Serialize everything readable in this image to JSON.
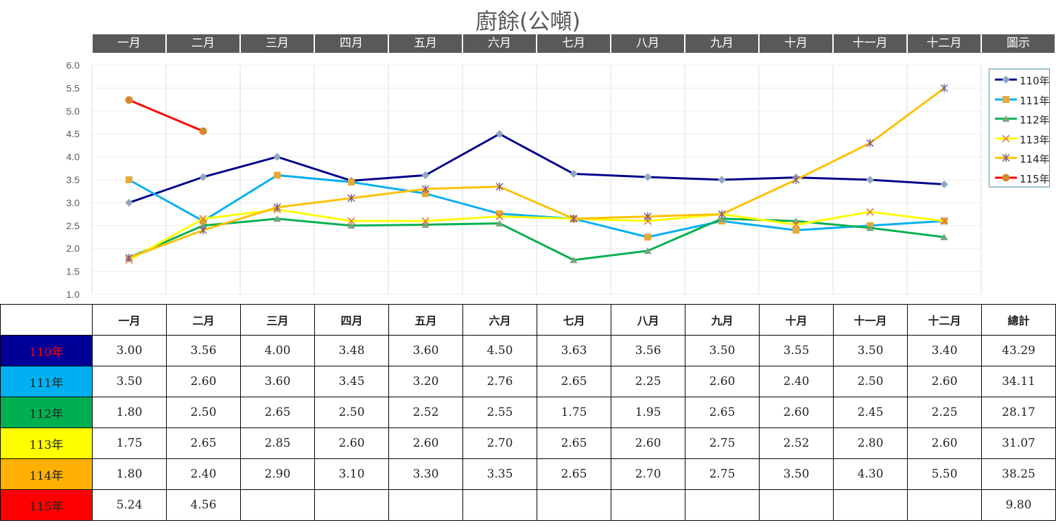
{
  "title": "廚餘(公噸)",
  "months": [
    "一月",
    "二月",
    "三月",
    "四月",
    "五月",
    "六月",
    "七月",
    "八月",
    "九月",
    "十月",
    "十一月",
    "十二月"
  ],
  "header_extra": "圖示",
  "table_header": {
    "total": "總計"
  },
  "chart_data": {
    "type": "line",
    "title": "廚餘(公噸)",
    "categories": [
      "一月",
      "二月",
      "三月",
      "四月",
      "五月",
      "六月",
      "七月",
      "八月",
      "九月",
      "十月",
      "十一月",
      "十二月"
    ],
    "ylim": [
      1.0,
      6.0
    ],
    "yticks": [
      "1.0",
      "1.5",
      "2.0",
      "2.5",
      "3.0",
      "3.5",
      "4.0",
      "4.5",
      "5.0",
      "5.5",
      "6.0"
    ],
    "grid": true,
    "legend_position": "right",
    "series": [
      {
        "name": "110年",
        "color": "#00008b",
        "marker": "diamond",
        "values": [
          3.0,
          3.56,
          4.0,
          3.48,
          3.6,
          4.5,
          3.63,
          3.56,
          3.5,
          3.55,
          3.5,
          3.4
        ]
      },
      {
        "name": "111年",
        "color": "#00b0f0",
        "marker": "square",
        "values": [
          3.5,
          2.6,
          3.6,
          3.45,
          3.2,
          2.76,
          2.65,
          2.25,
          2.6,
          2.4,
          2.5,
          2.6
        ]
      },
      {
        "name": "112年",
        "color": "#00b050",
        "marker": "triangle",
        "values": [
          1.8,
          2.5,
          2.65,
          2.5,
          2.52,
          2.55,
          1.75,
          1.95,
          2.65,
          2.6,
          2.45,
          2.25
        ]
      },
      {
        "name": "113年",
        "color": "#ffff00",
        "marker": "x",
        "values": [
          1.75,
          2.65,
          2.85,
          2.6,
          2.6,
          2.7,
          2.65,
          2.6,
          2.75,
          2.52,
          2.8,
          2.6
        ]
      },
      {
        "name": "114年",
        "color": "#ffc000",
        "marker": "star",
        "values": [
          1.8,
          2.4,
          2.9,
          3.1,
          3.3,
          3.35,
          2.65,
          2.7,
          2.75,
          3.5,
          4.3,
          5.5
        ]
      },
      {
        "name": "115年",
        "color": "#ff0000",
        "marker": "circle",
        "values": [
          5.24,
          4.56,
          null,
          null,
          null,
          null,
          null,
          null,
          null,
          null,
          null,
          null
        ]
      }
    ]
  },
  "table": {
    "rows": [
      {
        "label": "110年",
        "label_color": "#ff0000",
        "bg": "#000099",
        "cells": [
          "3.00",
          "3.56",
          "4.00",
          "3.48",
          "3.60",
          "4.50",
          "3.63",
          "3.56",
          "3.50",
          "3.55",
          "3.50",
          "3.40"
        ],
        "total": "43.29"
      },
      {
        "label": "111年",
        "label_color": "#222222",
        "bg": "#00b0f0",
        "cells": [
          "3.50",
          "2.60",
          "3.60",
          "3.45",
          "3.20",
          "2.76",
          "2.65",
          "2.25",
          "2.60",
          "2.40",
          "2.50",
          "2.60"
        ],
        "total": "34.11"
      },
      {
        "label": "112年",
        "label_color": "#222222",
        "bg": "#00b050",
        "cells": [
          "1.80",
          "2.50",
          "2.65",
          "2.50",
          "2.52",
          "2.55",
          "1.75",
          "1.95",
          "2.65",
          "2.60",
          "2.45",
          "2.25"
        ],
        "total": "28.17"
      },
      {
        "label": "113年",
        "label_color": "#222222",
        "bg": "#ffff00",
        "cells": [
          "1.75",
          "2.65",
          "2.85",
          "2.60",
          "2.60",
          "2.70",
          "2.65",
          "2.60",
          "2.75",
          "2.52",
          "2.80",
          "2.60"
        ],
        "total": "31.07"
      },
      {
        "label": "114年",
        "label_color": "#222222",
        "bg": "#ffb000",
        "cells": [
          "1.80",
          "2.40",
          "2.90",
          "3.10",
          "3.30",
          "3.35",
          "2.65",
          "2.70",
          "2.75",
          "3.50",
          "4.30",
          "5.50"
        ],
        "total": "38.25"
      },
      {
        "label": "115年",
        "label_color": "#222222",
        "bg": "#ff0000",
        "cells": [
          "5.24",
          "4.56",
          "",
          "",
          "",
          "",
          "",
          "",
          "",
          "",
          "",
          ""
        ],
        "total": "9.80"
      }
    ]
  }
}
